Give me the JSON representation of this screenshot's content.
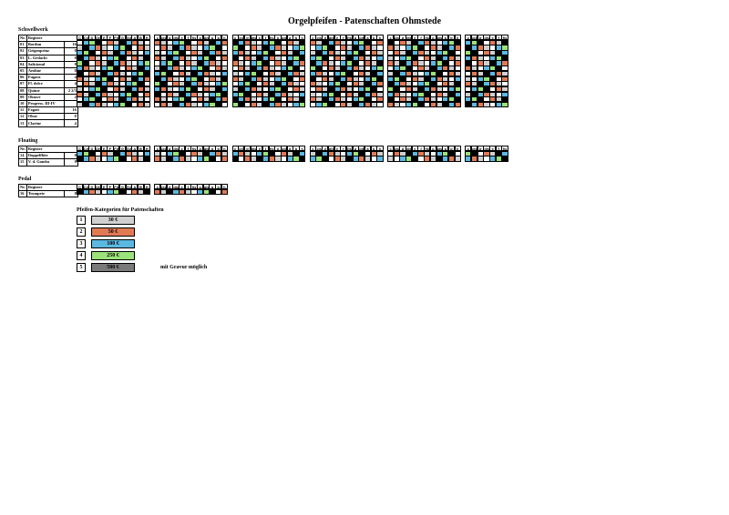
{
  "title": "Orgelpfeifen - Patenschaften  Ohmstede",
  "sections": {
    "schwellwerk": "Schwellwerk",
    "floating": "Floating",
    "pedal": "Pedal"
  },
  "register_header": {
    "nr": "Nr.",
    "name": "Register"
  },
  "schwellwerk_registers": [
    {
      "nr": "01",
      "name": "Bordun",
      "feet": "16"
    },
    {
      "nr": "02",
      "name": "Geigenprinz",
      "feet": "8"
    },
    {
      "nr": "03",
      "name": "L. Gedackt",
      "feet": "8"
    },
    {
      "nr": "04",
      "name": "Salicional",
      "feet": "8"
    },
    {
      "nr": "05",
      "name": "Aeoline",
      "feet": "8"
    },
    {
      "nr": "06",
      "name": "Fugara",
      "feet": "4"
    },
    {
      "nr": "07",
      "name": "Fl. dolce",
      "feet": "4"
    },
    {
      "nr": "08",
      "name": "Quinte",
      "feet": "2 2/3"
    },
    {
      "nr": "09",
      "name": "Oktave",
      "feet": "2"
    },
    {
      "nr": "10",
      "name": "Progress. III-IV",
      "feet": ""
    },
    {
      "nr": "11",
      "name": "Fagott",
      "feet": "16"
    },
    {
      "nr": "12",
      "name": "Oboe",
      "feet": "8"
    },
    {
      "nr": "13",
      "name": "Clarine",
      "feet": "4"
    }
  ],
  "floating_registers": [
    {
      "nr": "14",
      "name": "Doppelflöte",
      "feet": "8"
    },
    {
      "nr": "15",
      "name": "V. d. Gamba",
      "feet": "8"
    }
  ],
  "pedal_registers": [
    {
      "nr": "16",
      "name": "Trompete",
      "feet": "8"
    }
  ],
  "note_groups": [
    [
      "C",
      "Cis",
      "D",
      "Dis",
      "E",
      "F",
      "Fis",
      "G",
      "Gis",
      "A",
      "B",
      "H"
    ],
    [
      "c",
      "cis",
      "d",
      "dis",
      "e",
      "f",
      "fis",
      "g",
      "gis",
      "a",
      "b",
      "h"
    ],
    [
      "c",
      "cis",
      "d",
      "dis",
      "e",
      "f",
      "fis",
      "g",
      "gis",
      "a",
      "b",
      "h"
    ],
    [
      "c",
      "cis",
      "d",
      "dis",
      "e",
      "f",
      "fis",
      "g",
      "gis",
      "a",
      "b",
      "h"
    ],
    [
      "c",
      "cis",
      "d",
      "dis",
      "e",
      "f",
      "fis",
      "g",
      "gis",
      "a",
      "b",
      "h"
    ],
    [
      "c",
      "cis",
      "d",
      "dis",
      "e",
      "f",
      "fis"
    ]
  ],
  "legend": {
    "title": "Pfeifen-Kategorien für Patenschaften",
    "items": [
      {
        "num": "1",
        "price": "30 €",
        "color": "#d0d0d0"
      },
      {
        "num": "2",
        "price": "50 €",
        "color": "#e07a55"
      },
      {
        "num": "3",
        "price": "100 €",
        "color": "#5bb8e0"
      },
      {
        "num": "4",
        "price": "250 €",
        "color": "#9be27a"
      },
      {
        "num": "5",
        "price": "500 €",
        "color": "#7a7a7a"
      }
    ],
    "note": "mit Gravur möglich"
  }
}
